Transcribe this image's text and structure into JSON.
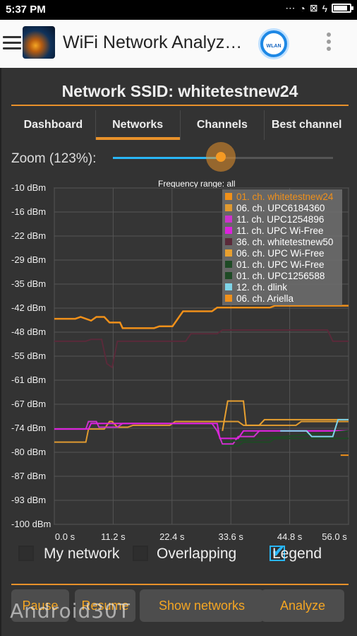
{
  "status_bar": {
    "time": "5:37 PM"
  },
  "app_bar": {
    "title": "WiFi Network Analyz…",
    "wlan_label": "WLAN"
  },
  "page": {
    "ssid_title": "Network SSID: whitetestnew24"
  },
  "tabs": [
    {
      "label": "Dashboard"
    },
    {
      "label": "Networks"
    },
    {
      "label": "Channels"
    },
    {
      "label": "Best channel"
    }
  ],
  "active_tab": 1,
  "zoom": {
    "label": "Zoom (123%):",
    "value_pct": 123,
    "slider_fraction": 0.49
  },
  "chart_data": {
    "type": "line",
    "subtitle": "Frequency range: all",
    "y_tick_labels": [
      "-10 dBm",
      "-16 dBm",
      "-22 dBm",
      "-29 dBm",
      "-35 dBm",
      "-42 dBm",
      "-48 dBm",
      "-55 dBm",
      "-61 dBm",
      "-67 dBm",
      "-74 dBm",
      "-80 dBm",
      "-87 dBm",
      "-93 dBm",
      "-100 dBm"
    ],
    "x_tick_labels": [
      "0.0 s",
      "11.2 s",
      "22.4 s",
      "33.6 s",
      "44.8 s",
      "56.0 s"
    ],
    "xlim": [
      0,
      56
    ],
    "ylim": [
      -100,
      -10
    ],
    "grid": true,
    "legend_position": "top-right",
    "series": [
      {
        "name": "01. ch. whitetestnew24",
        "color": "#f0901a",
        "highlight": true,
        "points": [
          [
            0,
            -45
          ],
          [
            4,
            -45
          ],
          [
            5,
            -44.5
          ],
          [
            7,
            -45.5
          ],
          [
            8,
            -44.5
          ],
          [
            9.5,
            -44.5
          ],
          [
            10.5,
            -46
          ],
          [
            12.5,
            -46
          ],
          [
            13,
            -47.5
          ],
          [
            19,
            -47.5
          ],
          [
            20,
            -47
          ],
          [
            22.5,
            -47
          ],
          [
            23.5,
            -45
          ],
          [
            24.5,
            -43
          ],
          [
            30,
            -43
          ],
          [
            31,
            -42
          ],
          [
            41,
            -42
          ],
          [
            42,
            -41.5
          ],
          [
            56,
            -41.5
          ]
        ]
      },
      {
        "name": "06. ch. UPC6184360",
        "color": "#e09a30",
        "points": [
          [
            0,
            -78
          ],
          [
            6,
            -78
          ],
          [
            6.5,
            -74.5
          ],
          [
            9.5,
            -74.5
          ],
          [
            10.5,
            -72.5
          ],
          [
            11,
            -72.5
          ],
          [
            12,
            -74
          ],
          [
            14,
            -74
          ],
          [
            15,
            -73.5
          ],
          [
            22,
            -73.5
          ],
          [
            23,
            -72.5
          ],
          [
            35,
            -72.5
          ],
          [
            36,
            -73.5
          ],
          [
            46,
            -73.5
          ],
          [
            47,
            -72.5
          ],
          [
            56,
            -72.5
          ]
        ]
      },
      {
        "name": "11. ch. UPC1254896",
        "color": "#cc33cc",
        "points": [
          [
            0,
            -74.5
          ],
          [
            6,
            -74.5
          ],
          [
            6.5,
            -72.5
          ],
          [
            8,
            -72.5
          ],
          [
            8.5,
            -74
          ],
          [
            12,
            -74
          ],
          [
            13,
            -73
          ],
          [
            30,
            -73
          ],
          [
            31,
            -75
          ],
          [
            32,
            -78.5
          ],
          [
            34,
            -78.5
          ],
          [
            35,
            -76.5
          ],
          [
            38,
            -76.5
          ],
          [
            39,
            -75
          ],
          [
            56,
            -75
          ]
        ]
      },
      {
        "name": "11. ch. UPC Wi-Free",
        "color": "#dd22dd",
        "points": [
          [
            0,
            -74.5
          ],
          [
            6.5,
            -74.5
          ],
          [
            7,
            -73
          ],
          [
            31,
            -73
          ],
          [
            31.5,
            -77
          ],
          [
            35,
            -77
          ],
          [
            36,
            -75
          ],
          [
            56,
            -75
          ]
        ]
      },
      {
        "name": "36. ch. whitetestnew50",
        "color": "#5a2a3a",
        "points": [
          [
            0,
            -51
          ],
          [
            6,
            -51
          ],
          [
            7,
            -50.5
          ],
          [
            9,
            -50.5
          ],
          [
            10,
            -57
          ],
          [
            11,
            -58
          ],
          [
            12,
            -51
          ],
          [
            25,
            -51
          ],
          [
            26,
            -49
          ],
          [
            31,
            -49
          ],
          [
            32,
            -48
          ],
          [
            52,
            -48
          ],
          [
            53,
            -51
          ],
          [
            56,
            -51
          ]
        ]
      },
      {
        "name": "06. ch. UPC Wi-Free",
        "color": "#e8a030",
        "points": [
          [
            32,
            -75
          ],
          [
            33,
            -67
          ],
          [
            36,
            -67
          ],
          [
            36.5,
            -73.5
          ],
          [
            39,
            -73.5
          ],
          [
            40,
            -72
          ],
          [
            56,
            -72
          ]
        ]
      },
      {
        "name": "01. ch. UPC Wi-Free",
        "color": "#1e4a25",
        "points": [
          [
            32,
            -79
          ],
          [
            35,
            -79
          ],
          [
            36,
            -78
          ],
          [
            41,
            -78
          ],
          [
            42,
            -77
          ],
          [
            56,
            -77
          ]
        ]
      },
      {
        "name": "01. ch. UPC1256588",
        "color": "#1e4a25",
        "points": [
          [
            32,
            -78
          ],
          [
            56,
            -75
          ]
        ]
      },
      {
        "name": "12. ch. dlink",
        "color": "#7fd4e8",
        "points": [
          [
            43,
            -75
          ],
          [
            48,
            -75
          ],
          [
            49,
            -76.5
          ],
          [
            53,
            -76.5
          ],
          [
            54,
            -72
          ],
          [
            56,
            -72
          ]
        ]
      },
      {
        "name": "06. ch. Ariella",
        "color": "#f0901a",
        "points": [
          [
            54.5,
            -81.5
          ],
          [
            56,
            -81.5
          ]
        ]
      }
    ]
  },
  "options": {
    "my_network": {
      "label": "My network",
      "checked": false
    },
    "overlapping": {
      "label": "Overlapping",
      "checked": false
    },
    "legend": {
      "label": "Legend",
      "checked": true
    }
  },
  "actions": {
    "pause": "Pause",
    "resume": "Resume",
    "show_networks": "Show networks",
    "analyze": "Analyze"
  },
  "watermark": "Android30T",
  "colors": {
    "accent": "#e8912a",
    "slider": "#29b6f6",
    "background": "#333333",
    "grid": "#555555"
  }
}
